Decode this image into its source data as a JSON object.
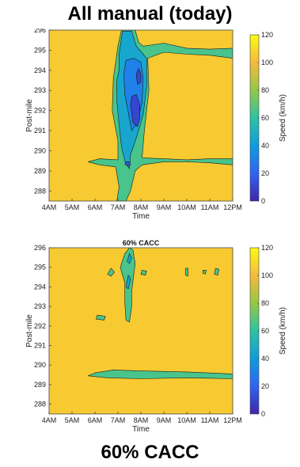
{
  "headings": {
    "top": "All manual (today)",
    "bottom": "60% CACC"
  },
  "chart_data": [
    {
      "type": "heatmap",
      "title": "",
      "xlabel": "Time",
      "ylabel": "Post-mile",
      "colorbar_label": "Speed (km/h)",
      "x_tick_labels": [
        "4AM",
        "5AM",
        "6AM",
        "7AM",
        "8AM",
        "9AM",
        "10AM",
        "11AM",
        "12PM"
      ],
      "x_ticks_hours": [
        4,
        5,
        6,
        7,
        8,
        9,
        10,
        11,
        12
      ],
      "xlim": [
        4,
        12
      ],
      "y_ticks": [
        288,
        289,
        290,
        291,
        292,
        293,
        294,
        295,
        296
      ],
      "y_tick_labels": [
        "288",
        "289",
        "290",
        "291",
        "292",
        "293",
        "294",
        "295",
        "296"
      ],
      "ylim": [
        287.5,
        296
      ],
      "colorbar_ticks": [
        0,
        20,
        40,
        60,
        80,
        100,
        120
      ],
      "colorbar_range": [
        0,
        120
      ],
      "colormap": [
        "#3e26a8",
        "#2f64f5",
        "#0f9ddc",
        "#2ec2a3",
        "#94c846",
        "#f6ba3c",
        "#f9fb15"
      ],
      "background_speed": 105,
      "congestion_regions": [
        {
          "speed": 65,
          "points": [
            [
              6.95,
              287.5
            ],
            [
              7.05,
              288.2
            ],
            [
              6.9,
              289.2
            ],
            [
              6.2,
              289.3
            ],
            [
              5.7,
              289.45
            ],
            [
              6.2,
              289.6
            ],
            [
              7.0,
              289.55
            ],
            [
              7.0,
              290.5
            ],
            [
              6.75,
              292.0
            ],
            [
              6.8,
              293.6
            ],
            [
              7.0,
              295.2
            ],
            [
              7.15,
              296.0
            ],
            [
              7.75,
              296.0
            ],
            [
              7.9,
              295.4
            ],
            [
              8.1,
              295.2
            ],
            [
              9.0,
              295.35
            ],
            [
              10.0,
              295.1
            ],
            [
              11.0,
              295.05
            ],
            [
              12.0,
              295.1
            ],
            [
              12.0,
              294.6
            ],
            [
              11.0,
              294.75
            ],
            [
              10.0,
              294.8
            ],
            [
              9.0,
              294.9
            ],
            [
              8.3,
              294.6
            ],
            [
              8.35,
              293.0
            ],
            [
              8.15,
              291.0
            ],
            [
              8.05,
              289.65
            ],
            [
              9.0,
              289.6
            ],
            [
              10.0,
              289.55
            ],
            [
              11.0,
              289.6
            ],
            [
              12.0,
              289.6
            ],
            [
              12.0,
              289.3
            ],
            [
              11.0,
              289.4
            ],
            [
              10.0,
              289.45
            ],
            [
              9.0,
              289.45
            ],
            [
              8.05,
              289.3
            ],
            [
              7.75,
              289.0
            ],
            [
              7.55,
              288.0
            ],
            [
              7.35,
              287.5
            ]
          ]
        },
        {
          "speed": 45,
          "points": [
            [
              7.2,
              295.95
            ],
            [
              7.05,
              294.8
            ],
            [
              7.05,
              294.0
            ],
            [
              6.95,
              293.5
            ],
            [
              6.95,
              292.5
            ],
            [
              7.05,
              291.3
            ],
            [
              7.15,
              290.2
            ],
            [
              7.3,
              289.5
            ],
            [
              7.5,
              289.1
            ],
            [
              7.55,
              289.8
            ],
            [
              7.85,
              290.8
            ],
            [
              8.1,
              291.8
            ],
            [
              8.25,
              293.2
            ],
            [
              8.25,
              294.6
            ],
            [
              7.8,
              295.2
            ],
            [
              7.6,
              295.95
            ]
          ]
        },
        {
          "speed": 30,
          "points": [
            [
              7.35,
              294.5
            ],
            [
              7.25,
              293.8
            ],
            [
              7.3,
              292.8
            ],
            [
              7.5,
              291.6
            ],
            [
              7.6,
              291.0
            ],
            [
              7.85,
              291.4
            ],
            [
              8.05,
              292.4
            ],
            [
              8.1,
              293.6
            ],
            [
              8.0,
              294.4
            ],
            [
              7.7,
              294.6
            ]
          ]
        },
        {
          "speed": 10,
          "points": [
            [
              7.55,
              292.3
            ],
            [
              7.65,
              291.4
            ],
            [
              7.85,
              291.2
            ],
            [
              7.95,
              291.6
            ],
            [
              7.95,
              292.3
            ],
            [
              7.8,
              292.8
            ],
            [
              7.6,
              292.7
            ]
          ]
        },
        {
          "speed": 10,
          "points": [
            [
              7.8,
              293.8
            ],
            [
              7.85,
              293.3
            ],
            [
              8.0,
              293.4
            ],
            [
              8.0,
              293.8
            ],
            [
              7.9,
              294.1
            ]
          ]
        },
        {
          "speed": 15,
          "points": [
            [
              7.3,
              289.35
            ],
            [
              7.4,
              289.25
            ],
            [
              7.55,
              289.3
            ],
            [
              7.5,
              289.45
            ],
            [
              7.35,
              289.45
            ]
          ]
        }
      ]
    },
    {
      "type": "heatmap",
      "title": "60% CACC",
      "xlabel": "Time",
      "ylabel": "Post-mile",
      "colorbar_label": "Speed (km/h)",
      "x_tick_labels": [
        "4AM",
        "5AM",
        "6AM",
        "7AM",
        "8AM",
        "9AM",
        "10AM",
        "11AM",
        "12PM"
      ],
      "x_ticks_hours": [
        4,
        5,
        6,
        7,
        8,
        9,
        10,
        11,
        12
      ],
      "xlim": [
        4,
        12
      ],
      "y_ticks": [
        288,
        289,
        290,
        291,
        292,
        293,
        294,
        295,
        296
      ],
      "y_tick_labels": [
        "288",
        "289",
        "290",
        "291",
        "292",
        "293",
        "294",
        "295",
        "296"
      ],
      "ylim": [
        287.5,
        296
      ],
      "colorbar_ticks": [
        0,
        20,
        40,
        60,
        80,
        100,
        120
      ],
      "colorbar_range": [
        0,
        120
      ],
      "colormap": [
        "#3e26a8",
        "#2f64f5",
        "#0f9ddc",
        "#2ec2a3",
        "#94c846",
        "#f6ba3c",
        "#f9fb15"
      ],
      "background_speed": 105,
      "congestion_regions": [
        {
          "speed": 65,
          "points": [
            [
              7.35,
              292.3
            ],
            [
              7.5,
              292.2
            ],
            [
              7.6,
              293.0
            ],
            [
              7.6,
              293.8
            ],
            [
              7.75,
              295.2
            ],
            [
              7.65,
              295.9
            ],
            [
              7.5,
              296.0
            ],
            [
              7.3,
              295.7
            ],
            [
              7.1,
              295.0
            ],
            [
              7.3,
              294.2
            ],
            [
              7.3,
              293.2
            ]
          ]
        },
        {
          "speed": 65,
          "points": [
            [
              5.7,
              289.45
            ],
            [
              6.5,
              289.35
            ],
            [
              8.0,
              289.3
            ],
            [
              10.0,
              289.35
            ],
            [
              12.0,
              289.3
            ],
            [
              12.0,
              289.55
            ],
            [
              10.0,
              289.65
            ],
            [
              8.0,
              289.7
            ],
            [
              6.8,
              289.75
            ],
            [
              6.0,
              289.6
            ]
          ]
        },
        {
          "speed": 65,
          "points": [
            [
              6.55,
              294.65
            ],
            [
              6.7,
              294.55
            ],
            [
              6.85,
              294.75
            ],
            [
              6.7,
              294.95
            ]
          ]
        },
        {
          "speed": 65,
          "points": [
            [
              6.05,
              292.35
            ],
            [
              6.4,
              292.3
            ],
            [
              6.45,
              292.5
            ],
            [
              6.1,
              292.55
            ]
          ]
        },
        {
          "speed": 65,
          "points": [
            [
              8.0,
              294.65
            ],
            [
              8.2,
              294.6
            ],
            [
              8.25,
              294.8
            ],
            [
              8.05,
              294.85
            ]
          ]
        },
        {
          "speed": 65,
          "points": [
            [
              9.95,
              294.6
            ],
            [
              10.05,
              294.55
            ],
            [
              10.05,
              294.95
            ],
            [
              9.95,
              294.95
            ]
          ]
        },
        {
          "speed": 65,
          "points": [
            [
              10.7,
              294.7
            ],
            [
              10.8,
              294.65
            ],
            [
              10.85,
              294.85
            ],
            [
              10.7,
              294.85
            ]
          ]
        },
        {
          "speed": 65,
          "points": [
            [
              11.2,
              294.65
            ],
            [
              11.35,
              294.6
            ],
            [
              11.4,
              294.9
            ],
            [
              11.25,
              294.95
            ]
          ]
        },
        {
          "speed": 45,
          "points": [
            [
              7.35,
              294.0
            ],
            [
              7.45,
              293.9
            ],
            [
              7.55,
              294.4
            ],
            [
              7.45,
              294.6
            ]
          ]
        },
        {
          "speed": 45,
          "points": [
            [
              7.4,
              295.3
            ],
            [
              7.5,
              295.2
            ],
            [
              7.6,
              295.5
            ],
            [
              7.5,
              295.7
            ]
          ]
        }
      ]
    }
  ]
}
